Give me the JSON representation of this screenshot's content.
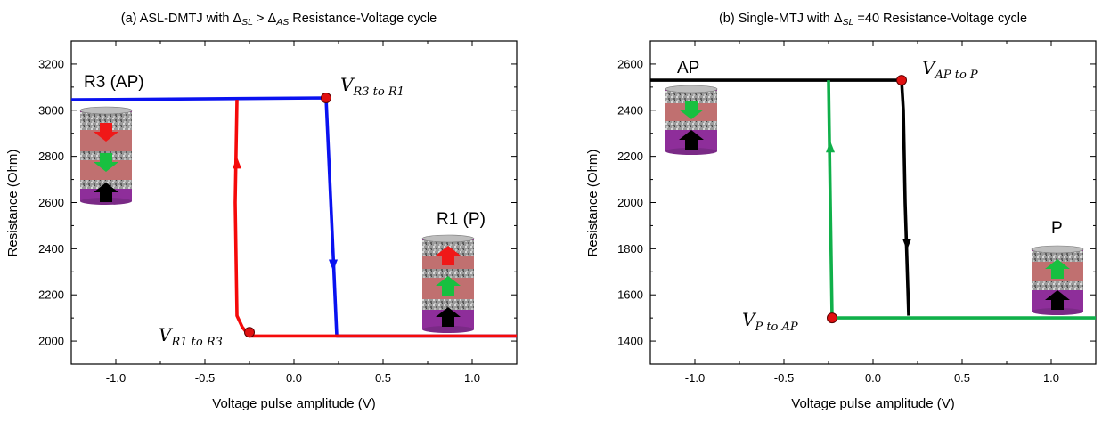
{
  "chart_data": [
    {
      "type": "line",
      "title": "(a) ASL-DMTJ with ΔSL > ΔAS  Resistance-Voltage cycle",
      "title_main": "(a) ASL-DMTJ with ",
      "title_d1": "Δ",
      "title_s1": "SL",
      "title_gt": " > ",
      "title_d2": "Δ",
      "title_s2": "AS",
      "title_tail": "   Resistance-Voltage cycle",
      "xlabel": "Voltage pulse amplitude (V)",
      "ylabel": "Resistance (Ohm)",
      "xlim": [
        -1.25,
        1.25
      ],
      "ylim": [
        1900,
        3300
      ],
      "xticks": [
        -1.0,
        -0.5,
        0.0,
        0.5,
        1.0
      ],
      "xtick_labels": [
        "-1.0",
        "-0.5",
        "0.0",
        "0.5",
        "1.0"
      ],
      "yticks": [
        2000,
        2200,
        2400,
        2600,
        2800,
        3000,
        3200
      ],
      "ytick_labels": [
        "2000",
        "2200",
        "2400",
        "2600",
        "2800",
        "3000",
        "3200"
      ],
      "series": [
        {
          "color": "#0a12f0",
          "x": [
            -1.25,
            0.18,
            0.22,
            0.24,
            1.25
          ],
          "y": [
            3045,
            3053,
            2370,
            2022,
            2022
          ]
        },
        {
          "color": "#f50a0a",
          "x": [
            1.25,
            -0.25,
            -0.29,
            -0.32,
            -0.33,
            -0.32
          ],
          "y": [
            2022,
            2022,
            2060,
            2110,
            2600,
            3045
          ]
        }
      ],
      "markers": [
        {
          "x": 0.18,
          "y": 3053,
          "color": "#e01010"
        },
        {
          "x": -0.25,
          "y": 2038,
          "color": "#e01010"
        }
      ],
      "arrows": [
        {
          "x": 0.22,
          "y": 2330,
          "dir": "down",
          "color": "#0a12f0"
        },
        {
          "x": -0.32,
          "y": 2770,
          "dir": "up",
          "color": "#f50a0a"
        }
      ],
      "state_labels": {
        "top_left": "R3 (AP)",
        "right": "R1 (P)"
      },
      "point_labels": [
        {
          "main": "V",
          "sub": "R3 to R1"
        },
        {
          "main": "V",
          "sub": "R1 to R3"
        }
      ],
      "pillar_arrows": [
        [
          "red-down",
          "green-down",
          "black-up"
        ],
        [
          "red-up",
          "green-up",
          "black-up"
        ]
      ]
    },
    {
      "type": "line",
      "title": "(b) Single-MTJ with ΔSL =40 Resistance-Voltage cycle",
      "title_main": "(b) Single-MTJ with ",
      "title_d1": "Δ",
      "title_s1": "SL",
      "title_tail": " =40 Resistance-Voltage cycle",
      "xlabel": "Voltage pulse amplitude (V)",
      "ylabel": "Resistance (Ohm)",
      "xlim": [
        -1.25,
        1.25
      ],
      "ylim": [
        1300,
        2700
      ],
      "xticks": [
        -1.0,
        -0.5,
        0.0,
        0.5,
        1.0
      ],
      "xtick_labels": [
        "-1.0",
        "-0.5",
        "0.0",
        "0.5",
        "1.0"
      ],
      "yticks": [
        1400,
        1600,
        1800,
        2000,
        2200,
        2400,
        2600
      ],
      "ytick_labels": [
        "1400",
        "1600",
        "1800",
        "2000",
        "2200",
        "2400",
        "2600"
      ],
      "series": [
        {
          "color": "#000000",
          "x": [
            -1.25,
            0.16,
            0.17,
            0.18,
            0.2
          ],
          "y": [
            2530,
            2530,
            2400,
            2000,
            1510
          ]
        },
        {
          "color": "#10b04a",
          "x": [
            1.25,
            -0.23,
            -0.24,
            -0.25
          ],
          "y": [
            1500,
            1500,
            2000,
            2530
          ]
        }
      ],
      "markers": [
        {
          "x": 0.16,
          "y": 2530,
          "color": "#e01010"
        },
        {
          "x": -0.23,
          "y": 1500,
          "color": "#e01010"
        }
      ],
      "arrows": [
        {
          "x": 0.19,
          "y": 1820,
          "dir": "down",
          "color": "#000000"
        },
        {
          "x": -0.24,
          "y": 2240,
          "dir": "up",
          "color": "#10b04a"
        }
      ],
      "state_labels": {
        "top_left": "AP",
        "right": "P"
      },
      "point_labels": [
        {
          "main": "V",
          "sub": "AP to P"
        },
        {
          "main": "V",
          "sub": "P to AP"
        }
      ],
      "pillar_arrows": [
        [
          "green-down",
          "black-up"
        ],
        [
          "green-up",
          "black-up"
        ]
      ]
    }
  ]
}
